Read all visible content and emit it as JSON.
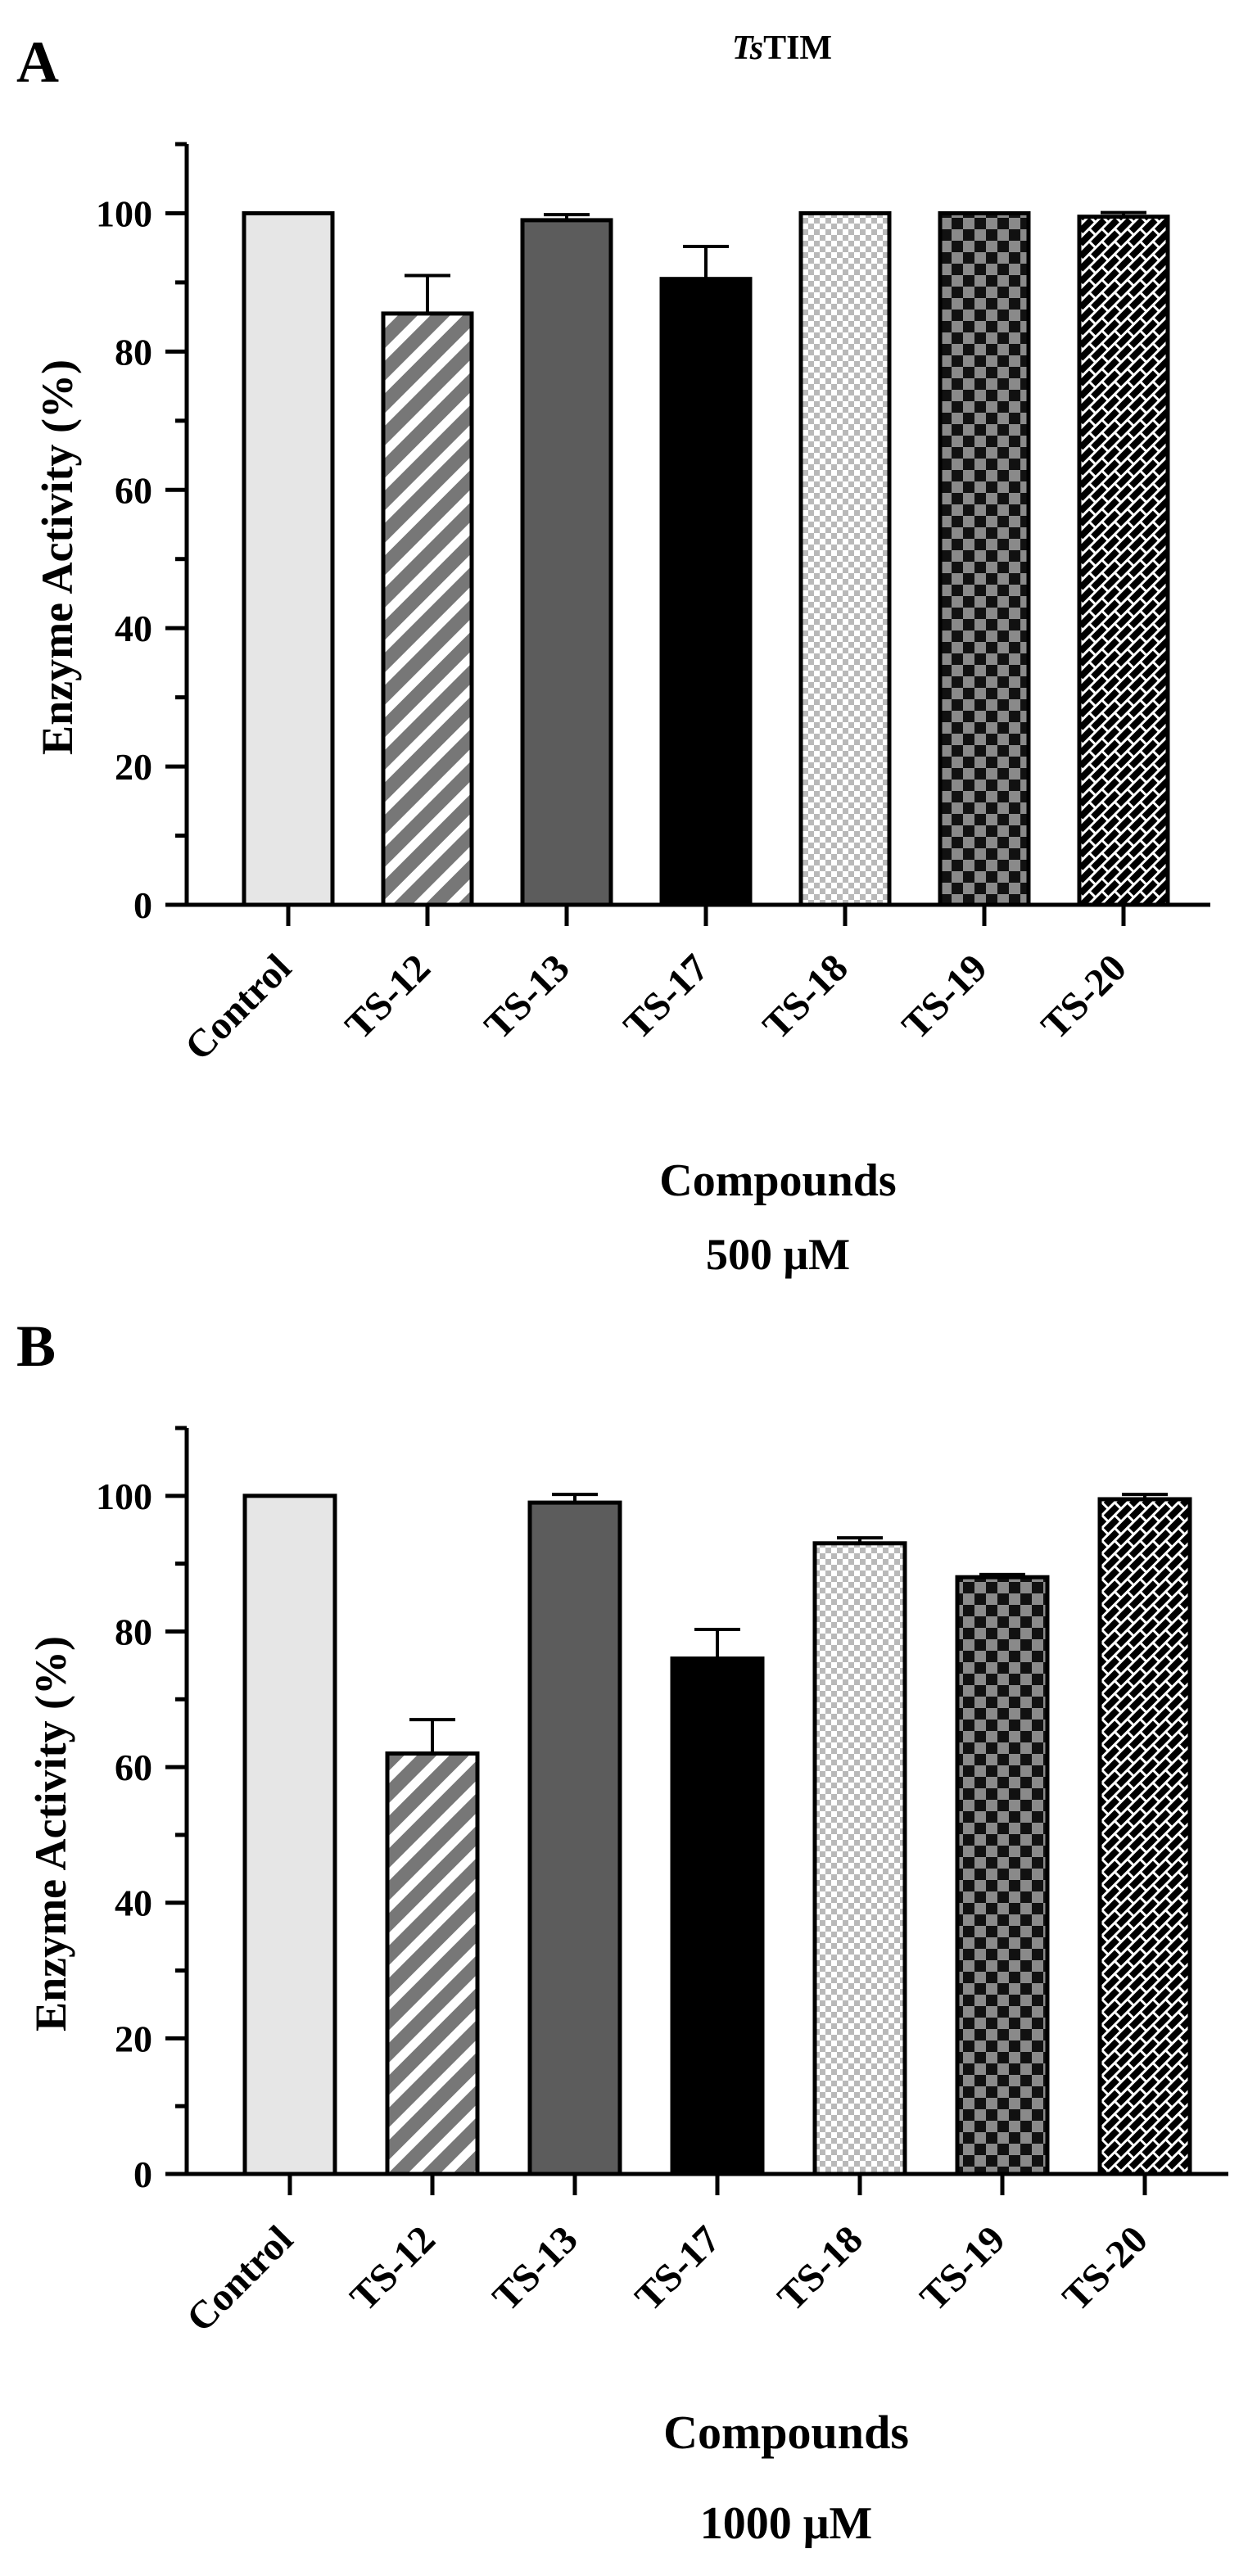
{
  "figure_title_italic": "Ts",
  "figure_title_rest": "TIM",
  "colors": {
    "control": "#e6e6e6",
    "ts12_stripe": "#777777",
    "ts13": "#5c5c5c",
    "ts17": "#000000",
    "ts18_check": "#b9b9b9",
    "ts19_check_a": "#8a8a8a",
    "ts19_check_b": "#111111",
    "ts20_pattern": "#000000"
  },
  "chart_data": [
    {
      "type": "bar",
      "panel_label": "A",
      "categories": [
        "Control",
        "TS-12",
        "TS-13",
        "TS-17",
        "TS-18",
        "TS-19",
        "TS-20"
      ],
      "values": [
        100,
        85.5,
        99,
        90.5,
        100,
        100,
        99.5
      ],
      "errors": [
        0,
        5.5,
        0.8,
        4.7,
        0,
        0,
        0.6
      ],
      "patterns": [
        "control",
        "ts12",
        "ts13",
        "ts17",
        "ts18",
        "ts19",
        "ts20"
      ],
      "ylabel": "Enzyme Activity (%)",
      "xlabel": "Compounds",
      "xlabel_sub": "500  μM",
      "ylim": [
        0,
        110
      ],
      "yticks": [
        "0",
        "20",
        "40",
        "60",
        "80",
        "100"
      ],
      "ytick_values": [
        0,
        20,
        40,
        60,
        80,
        100
      ],
      "grid": false
    },
    {
      "type": "bar",
      "panel_label": "B",
      "categories": [
        "Control",
        "TS-12",
        "TS-13",
        "TS-17",
        "TS-18",
        "TS-19",
        "TS-20"
      ],
      "values": [
        100,
        62,
        99,
        76,
        93,
        88,
        99.5
      ],
      "errors": [
        0,
        5,
        1.2,
        4.3,
        0.8,
        0.4,
        0.7
      ],
      "patterns": [
        "control",
        "ts12",
        "ts13",
        "ts17",
        "ts18",
        "ts19",
        "ts20"
      ],
      "ylabel": "Enzyme Activity (%)",
      "xlabel": "Compounds",
      "xlabel_sub": "1000  μM",
      "ylim": [
        0,
        110
      ],
      "yticks": [
        "0",
        "20",
        "40",
        "60",
        "80",
        "100"
      ],
      "ytick_values": [
        0,
        20,
        40,
        60,
        80,
        100
      ],
      "grid": false
    }
  ]
}
